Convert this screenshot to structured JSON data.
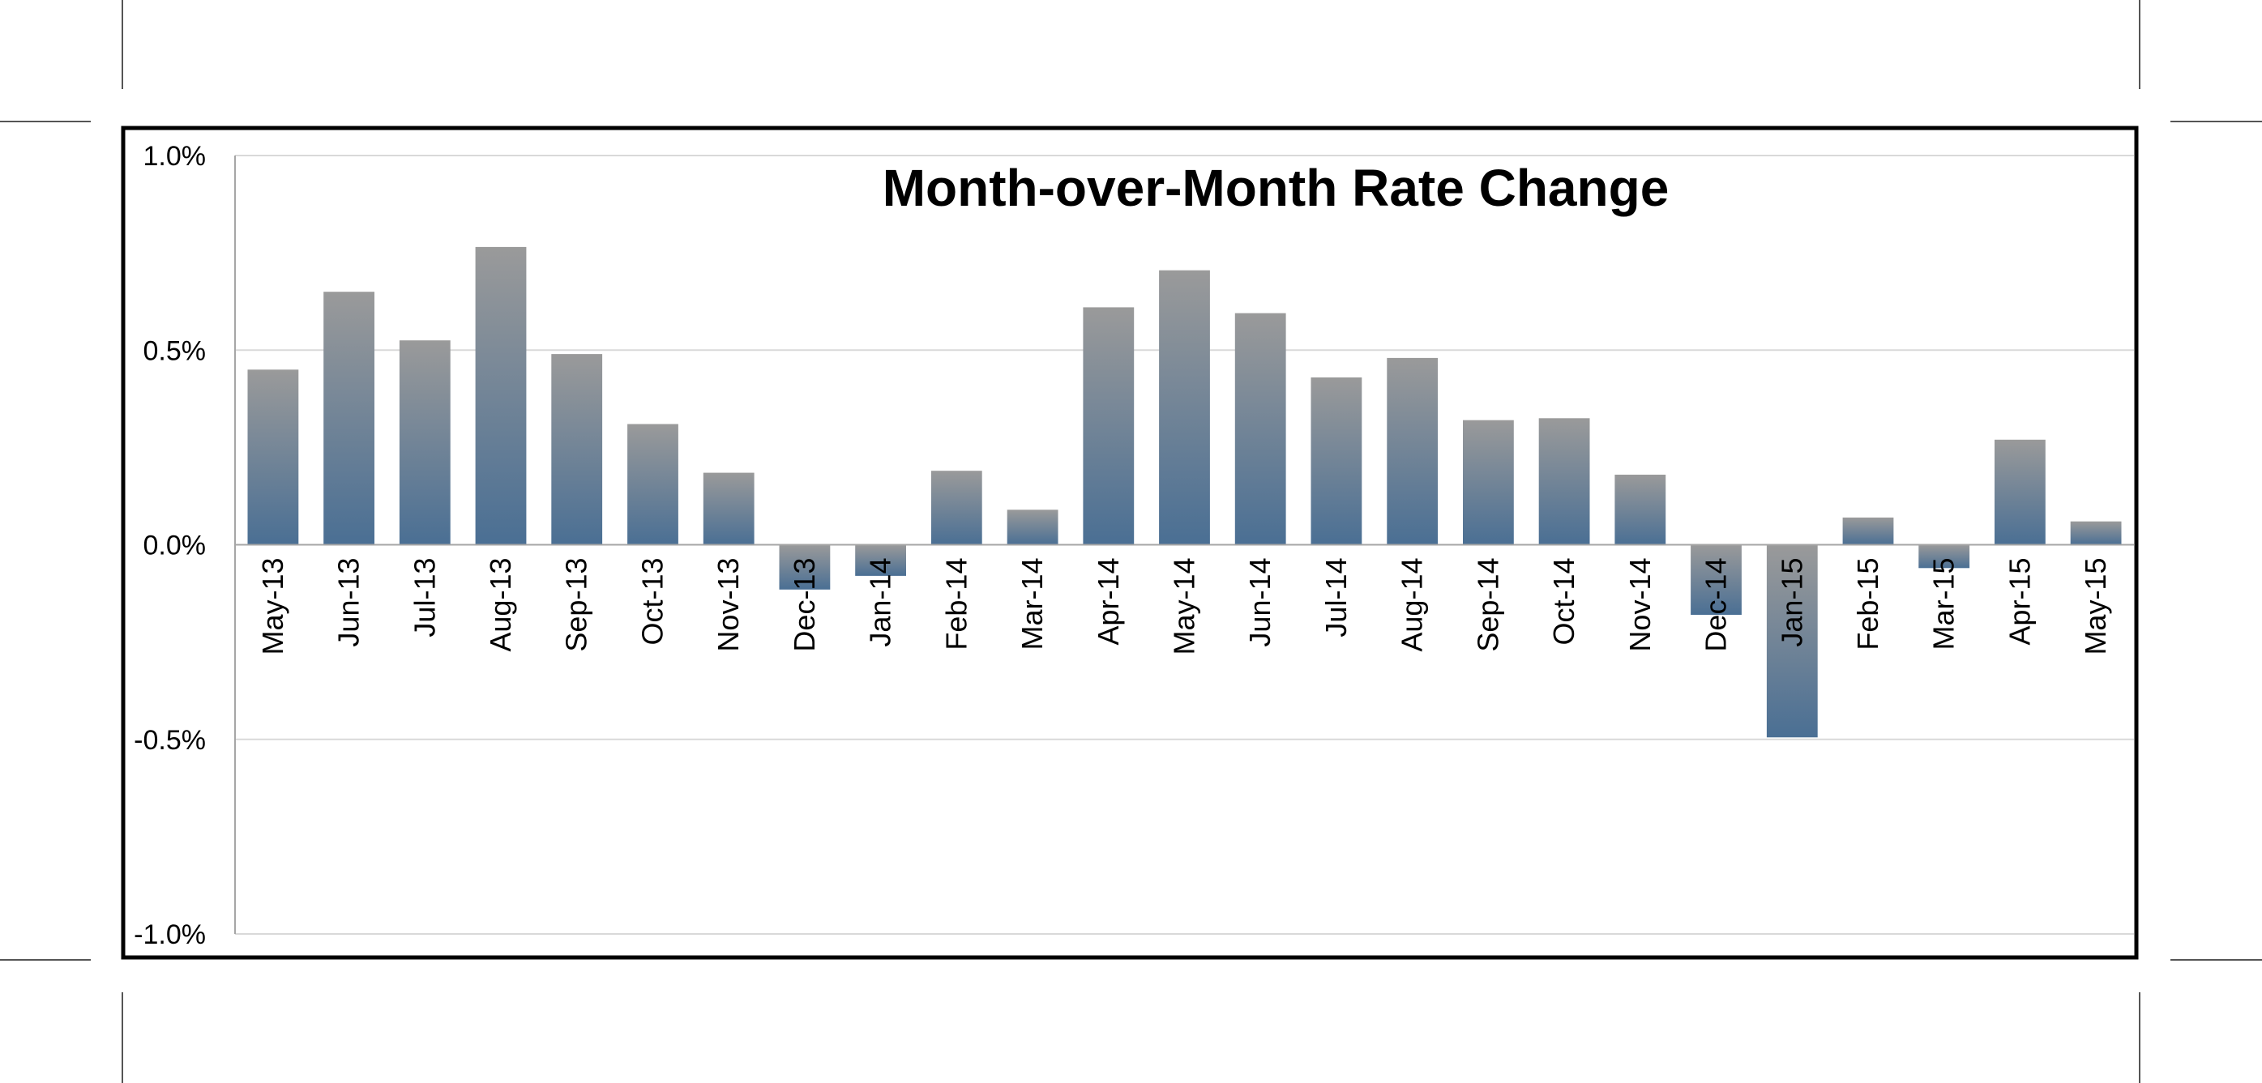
{
  "chart_data": {
    "type": "bar",
    "title": "Month-over-Month Rate Change",
    "xlabel": "",
    "ylabel": "",
    "ylim": [
      -1.0,
      1.0
    ],
    "yticks": [
      1.0,
      0.5,
      0.0,
      -0.5,
      -1.0
    ],
    "ytick_labels": [
      "1.0%",
      "0.5%",
      "0.0%",
      "-0.5%",
      "-1.0%"
    ],
    "grid": true,
    "legend": "none",
    "bar_gradient": {
      "top": "#9a9a9a",
      "bottom": "#4a6f94"
    },
    "categories": [
      "May-13",
      "Jun-13",
      "Jul-13",
      "Aug-13",
      "Sep-13",
      "Oct-13",
      "Nov-13",
      "Dec-13",
      "Jan-14",
      "Feb-14",
      "Mar-14",
      "Apr-14",
      "May-14",
      "Jun-14",
      "Jul-14",
      "Aug-14",
      "Sep-14",
      "Oct-14",
      "Nov-14",
      "Dec-14",
      "Jan-15",
      "Feb-15",
      "Mar-15",
      "Apr-15",
      "May-15"
    ],
    "values": [
      0.45,
      0.65,
      0.525,
      0.765,
      0.49,
      0.31,
      0.185,
      -0.115,
      -0.08,
      0.19,
      0.09,
      0.61,
      0.705,
      0.595,
      0.43,
      0.48,
      0.32,
      0.325,
      0.18,
      -0.18,
      -0.495,
      0.07,
      -0.06,
      0.27,
      0.06
    ]
  }
}
